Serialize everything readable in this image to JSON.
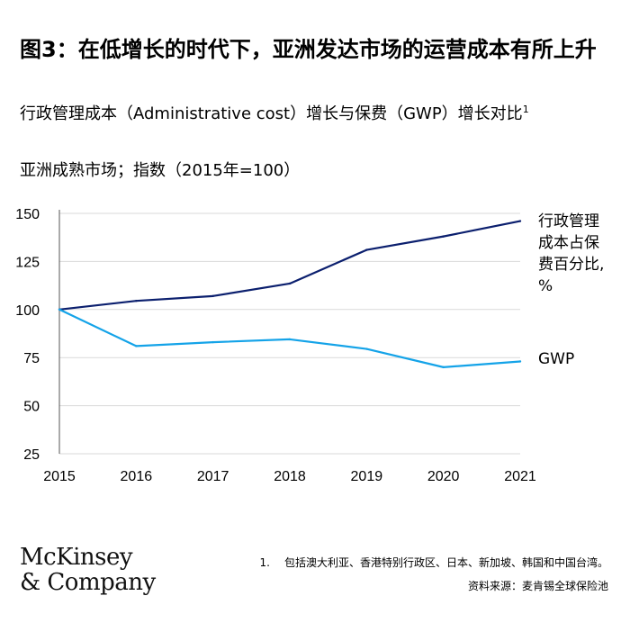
{
  "title": "图3：在低增长的时代下，亚洲发达市场的运营成本有所上升",
  "subtitle_main": "行政管理成本（Administrative cost）增长与保费（GWP）增长对比",
  "subtitle_sup": "1",
  "note": "亚洲成熟市场；指数（2015年=100）",
  "colors": {
    "admin_cost": "#0b1f6e",
    "gwp": "#14a3e8",
    "grid": "#d9d9d9",
    "axis": "#555555"
  },
  "chart_data": {
    "type": "line",
    "x": [
      "2015",
      "2016",
      "2017",
      "2018",
      "2019",
      "2020",
      "2021"
    ],
    "series": [
      {
        "name": "行政管理成本占保费百分比，%",
        "values": [
          100,
          104.5,
          107,
          113.5,
          131,
          138,
          146
        ]
      },
      {
        "name": "GWP",
        "values": [
          100,
          81,
          83,
          84.5,
          79.5,
          70,
          73
        ]
      }
    ],
    "yticks": [
      150,
      125,
      100,
      75,
      50,
      25
    ],
    "ylim": [
      25,
      150
    ],
    "grid": true
  },
  "labels": {
    "admin_cost_lines": [
      "行政管理",
      "成本占保",
      "费百分比,",
      "%"
    ],
    "gwp": "GWP"
  },
  "logo": {
    "line1": "McKinsey",
    "line2": "& Company"
  },
  "footnote": {
    "num": "1.",
    "text": "包括澳大利亚、香港特别行政区、日本、新加坡、韩国和中国台湾。",
    "source": "资料来源：麦肯锡全球保险池"
  }
}
